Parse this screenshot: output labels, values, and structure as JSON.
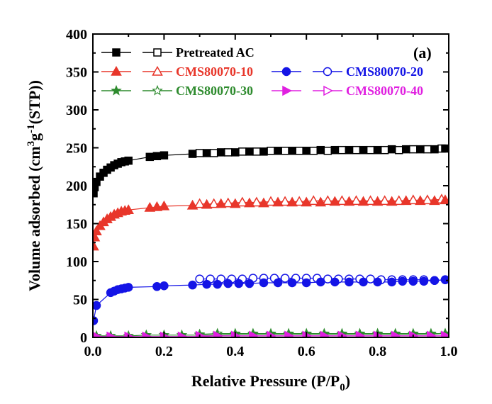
{
  "chart_data": {
    "type": "scatter",
    "panel_label": "(a)",
    "xlabel": "Relative Pressure (P/P0)",
    "xlabel_parts": {
      "main": "Relative Pressure (P/P",
      "sub": "0",
      "end": ")"
    },
    "ylabel": "Volume adsorbed (cm3g-1(STP))",
    "ylabel_parts": {
      "a": "Volume adsorbed (cm",
      "sup1": "3",
      "b": "g",
      "sup2": "-1",
      "c": "(STP))"
    },
    "xlim": [
      0.0,
      1.0
    ],
    "ylim": [
      0,
      400
    ],
    "xticks": [
      "0.0",
      "0.2",
      "0.4",
      "0.6",
      "0.8",
      "1.0"
    ],
    "yticks": [
      "0",
      "50",
      "100",
      "150",
      "200",
      "250",
      "300",
      "350",
      "400"
    ],
    "grid": false,
    "legend_position": "top",
    "series": [
      {
        "name": "Pretreated AC",
        "color": "#000000",
        "marker": "square",
        "adsorption": [
          [
            0.002,
            190
          ],
          [
            0.005,
            198
          ],
          [
            0.01,
            205
          ],
          [
            0.02,
            212
          ],
          [
            0.03,
            217
          ],
          [
            0.04,
            221
          ],
          [
            0.05,
            224
          ],
          [
            0.06,
            227
          ],
          [
            0.07,
            229
          ],
          [
            0.08,
            231
          ],
          [
            0.09,
            232
          ],
          [
            0.1,
            233
          ],
          [
            0.16,
            238
          ],
          [
            0.18,
            239
          ],
          [
            0.2,
            240
          ],
          [
            0.28,
            242
          ],
          [
            0.32,
            243
          ],
          [
            0.36,
            244
          ],
          [
            0.4,
            244
          ],
          [
            0.44,
            245
          ],
          [
            0.48,
            245
          ],
          [
            0.52,
            246
          ],
          [
            0.56,
            246
          ],
          [
            0.6,
            246
          ],
          [
            0.64,
            247
          ],
          [
            0.68,
            247
          ],
          [
            0.72,
            247
          ],
          [
            0.76,
            247
          ],
          [
            0.8,
            247
          ],
          [
            0.84,
            248
          ],
          [
            0.88,
            248
          ],
          [
            0.92,
            248
          ],
          [
            0.96,
            248
          ],
          [
            0.99,
            249
          ]
        ],
        "desorption": [
          [
            0.3,
            243
          ],
          [
            0.34,
            243
          ],
          [
            0.38,
            244
          ],
          [
            0.42,
            245
          ],
          [
            0.46,
            245
          ],
          [
            0.5,
            246
          ],
          [
            0.54,
            246
          ],
          [
            0.58,
            246
          ],
          [
            0.62,
            246
          ],
          [
            0.66,
            246
          ],
          [
            0.7,
            247
          ],
          [
            0.74,
            247
          ],
          [
            0.78,
            247
          ],
          [
            0.82,
            247
          ],
          [
            0.86,
            247
          ],
          [
            0.9,
            248
          ],
          [
            0.94,
            248
          ],
          [
            0.98,
            249
          ]
        ]
      },
      {
        "name": "CMS80070-10",
        "color": "#e8362a",
        "marker": "triangle",
        "adsorption": [
          [
            0.002,
            120
          ],
          [
            0.005,
            132
          ],
          [
            0.01,
            140
          ],
          [
            0.02,
            147
          ],
          [
            0.03,
            152
          ],
          [
            0.04,
            156
          ],
          [
            0.05,
            159
          ],
          [
            0.06,
            162
          ],
          [
            0.07,
            164
          ],
          [
            0.08,
            166
          ],
          [
            0.09,
            167
          ],
          [
            0.1,
            168
          ],
          [
            0.16,
            171
          ],
          [
            0.18,
            172
          ],
          [
            0.2,
            173
          ],
          [
            0.28,
            174
          ],
          [
            0.32,
            175
          ],
          [
            0.36,
            176
          ],
          [
            0.4,
            176
          ],
          [
            0.44,
            177
          ],
          [
            0.48,
            177
          ],
          [
            0.52,
            178
          ],
          [
            0.56,
            178
          ],
          [
            0.6,
            178
          ],
          [
            0.64,
            178
          ],
          [
            0.68,
            179
          ],
          [
            0.72,
            179
          ],
          [
            0.76,
            179
          ],
          [
            0.8,
            179
          ],
          [
            0.84,
            179
          ],
          [
            0.88,
            180
          ],
          [
            0.92,
            180
          ],
          [
            0.96,
            180
          ],
          [
            0.99,
            181
          ]
        ],
        "desorption": [
          [
            0.3,
            176
          ],
          [
            0.34,
            176
          ],
          [
            0.38,
            177
          ],
          [
            0.42,
            178
          ],
          [
            0.46,
            178
          ],
          [
            0.5,
            179
          ],
          [
            0.54,
            179
          ],
          [
            0.58,
            179
          ],
          [
            0.62,
            180
          ],
          [
            0.66,
            180
          ],
          [
            0.7,
            180
          ],
          [
            0.74,
            180
          ],
          [
            0.78,
            180
          ],
          [
            0.82,
            180
          ],
          [
            0.86,
            180
          ],
          [
            0.9,
            181
          ],
          [
            0.94,
            181
          ],
          [
            0.98,
            182
          ]
        ]
      },
      {
        "name": "CMS80070-20",
        "color": "#1414e6",
        "marker": "circle",
        "adsorption": [
          [
            0.002,
            22
          ],
          [
            0.01,
            42
          ],
          [
            0.05,
            59
          ],
          [
            0.06,
            61
          ],
          [
            0.07,
            63
          ],
          [
            0.08,
            64
          ],
          [
            0.09,
            65
          ],
          [
            0.1,
            66
          ],
          [
            0.18,
            67
          ],
          [
            0.2,
            68
          ],
          [
            0.28,
            69
          ],
          [
            0.32,
            70
          ],
          [
            0.35,
            70
          ],
          [
            0.38,
            71
          ],
          [
            0.41,
            71
          ],
          [
            0.44,
            71
          ],
          [
            0.48,
            72
          ],
          [
            0.52,
            72
          ],
          [
            0.56,
            72
          ],
          [
            0.6,
            72
          ],
          [
            0.64,
            73
          ],
          [
            0.68,
            73
          ],
          [
            0.72,
            73
          ],
          [
            0.76,
            73
          ],
          [
            0.8,
            73
          ],
          [
            0.84,
            73
          ],
          [
            0.87,
            74
          ],
          [
            0.9,
            74
          ],
          [
            0.93,
            74
          ],
          [
            0.96,
            75
          ],
          [
            0.99,
            76
          ]
        ],
        "desorption": [
          [
            0.3,
            77
          ],
          [
            0.33,
            77
          ],
          [
            0.36,
            77
          ],
          [
            0.39,
            77
          ],
          [
            0.42,
            77
          ],
          [
            0.45,
            78
          ],
          [
            0.48,
            78
          ],
          [
            0.51,
            78
          ],
          [
            0.54,
            78
          ],
          [
            0.57,
            78
          ],
          [
            0.6,
            78
          ],
          [
            0.63,
            78
          ],
          [
            0.66,
            77
          ],
          [
            0.69,
            77
          ],
          [
            0.72,
            77
          ],
          [
            0.75,
            77
          ],
          [
            0.78,
            77
          ],
          [
            0.81,
            76
          ],
          [
            0.84,
            76
          ],
          [
            0.87,
            76
          ],
          [
            0.9,
            76
          ],
          [
            0.93,
            76
          ],
          [
            0.96,
            75
          ],
          [
            0.99,
            76
          ]
        ]
      },
      {
        "name": "CMS80070-30",
        "color": "#2e8b2e",
        "marker": "star",
        "adsorption": [
          [
            0.01,
            2
          ],
          [
            0.05,
            2
          ],
          [
            0.1,
            2
          ],
          [
            0.15,
            3
          ],
          [
            0.2,
            3
          ],
          [
            0.25,
            3
          ],
          [
            0.3,
            3
          ],
          [
            0.35,
            3
          ],
          [
            0.4,
            4
          ],
          [
            0.45,
            4
          ],
          [
            0.5,
            4
          ],
          [
            0.55,
            4
          ],
          [
            0.6,
            4
          ],
          [
            0.65,
            4
          ],
          [
            0.7,
            4
          ],
          [
            0.75,
            4
          ],
          [
            0.8,
            4
          ],
          [
            0.85,
            4
          ],
          [
            0.9,
            4
          ],
          [
            0.95,
            4
          ],
          [
            0.99,
            5
          ]
        ],
        "desorption": [
          [
            0.3,
            4
          ],
          [
            0.35,
            5
          ],
          [
            0.4,
            5
          ],
          [
            0.45,
            5
          ],
          [
            0.5,
            5
          ],
          [
            0.55,
            5
          ],
          [
            0.6,
            5
          ],
          [
            0.65,
            5
          ],
          [
            0.7,
            5
          ],
          [
            0.75,
            5
          ],
          [
            0.8,
            5
          ],
          [
            0.85,
            5
          ],
          [
            0.9,
            5
          ],
          [
            0.95,
            5
          ],
          [
            0.99,
            5
          ]
        ]
      },
      {
        "name": "CMS80070-40",
        "color": "#e020e0",
        "marker": "triangle-right",
        "adsorption": [
          [
            0.01,
            1
          ],
          [
            0.05,
            1
          ],
          [
            0.1,
            1
          ],
          [
            0.15,
            1
          ],
          [
            0.2,
            1
          ],
          [
            0.25,
            1
          ],
          [
            0.3,
            1
          ],
          [
            0.35,
            2
          ],
          [
            0.4,
            2
          ],
          [
            0.45,
            2
          ],
          [
            0.5,
            2
          ],
          [
            0.55,
            2
          ],
          [
            0.6,
            2
          ],
          [
            0.65,
            2
          ],
          [
            0.7,
            2
          ],
          [
            0.75,
            2
          ],
          [
            0.8,
            2
          ],
          [
            0.85,
            2
          ],
          [
            0.9,
            2
          ],
          [
            0.95,
            2
          ],
          [
            0.99,
            2
          ]
        ],
        "desorption": [
          [
            0.3,
            2
          ],
          [
            0.35,
            2
          ],
          [
            0.4,
            2
          ],
          [
            0.45,
            2
          ],
          [
            0.5,
            2
          ],
          [
            0.55,
            2
          ],
          [
            0.6,
            2
          ],
          [
            0.65,
            2
          ],
          [
            0.7,
            2
          ],
          [
            0.75,
            2
          ],
          [
            0.8,
            2
          ],
          [
            0.85,
            2
          ],
          [
            0.9,
            2
          ],
          [
            0.95,
            2
          ],
          [
            0.99,
            2
          ]
        ]
      }
    ]
  }
}
